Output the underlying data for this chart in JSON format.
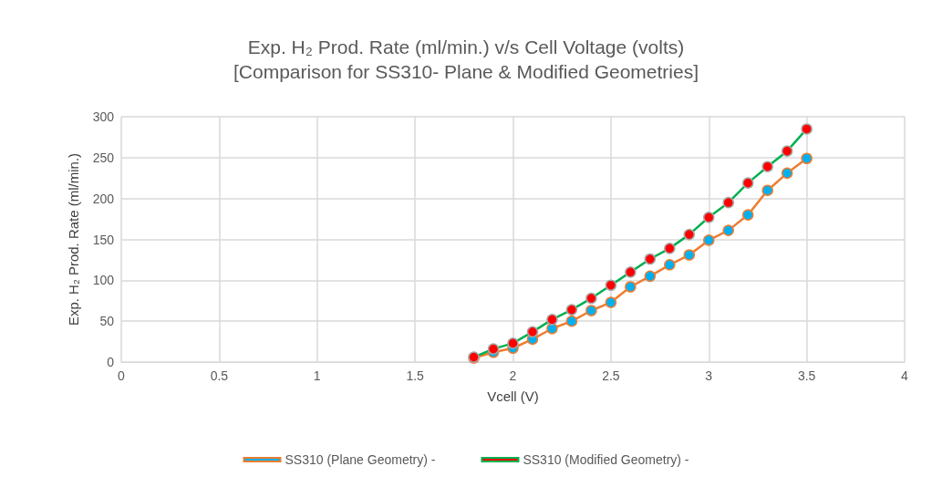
{
  "chart_data": {
    "type": "line",
    "title": "Exp. H₂ Prod. Rate (ml/min.) v/s Cell Voltage (volts)",
    "subtitle": "[Comparison for SS310- Plane & Modified Geometries]",
    "xlabel": "Vcell (V)",
    "ylabel": "Exp. H₂ Prod. Rate (ml/min.)",
    "x": [
      1.8,
      1.9,
      2.0,
      2.1,
      2.2,
      2.3,
      2.4,
      2.5,
      2.6,
      2.7,
      2.8,
      2.9,
      3.0,
      3.1,
      3.2,
      3.3,
      3.4,
      3.5
    ],
    "series": [
      {
        "name": "SS310 (Plane Geometry) -",
        "color": "#ed7d31",
        "values": [
          5,
          12,
          17,
          28,
          41,
          50,
          63,
          73,
          92,
          105,
          119,
          131,
          149,
          161,
          180,
          210,
          231,
          249
        ]
      },
      {
        "name": "SS310 (Modified Geometry) -",
        "color": "#00b050",
        "values": [
          6,
          16,
          23,
          37,
          52,
          64,
          78,
          94,
          110,
          126,
          139,
          156,
          177,
          195,
          219,
          239,
          258,
          285
        ]
      }
    ],
    "xlim": [
      0,
      4
    ],
    "xticks": [
      0,
      0.5,
      1,
      1.5,
      2,
      2.5,
      3,
      3.5,
      4
    ],
    "ylim": [
      0,
      300
    ],
    "yticks": [
      0,
      50,
      100,
      150,
      200,
      250,
      300
    ],
    "grid": true,
    "legend": "bottom",
    "marker": "circle",
    "line_style": "solid"
  }
}
